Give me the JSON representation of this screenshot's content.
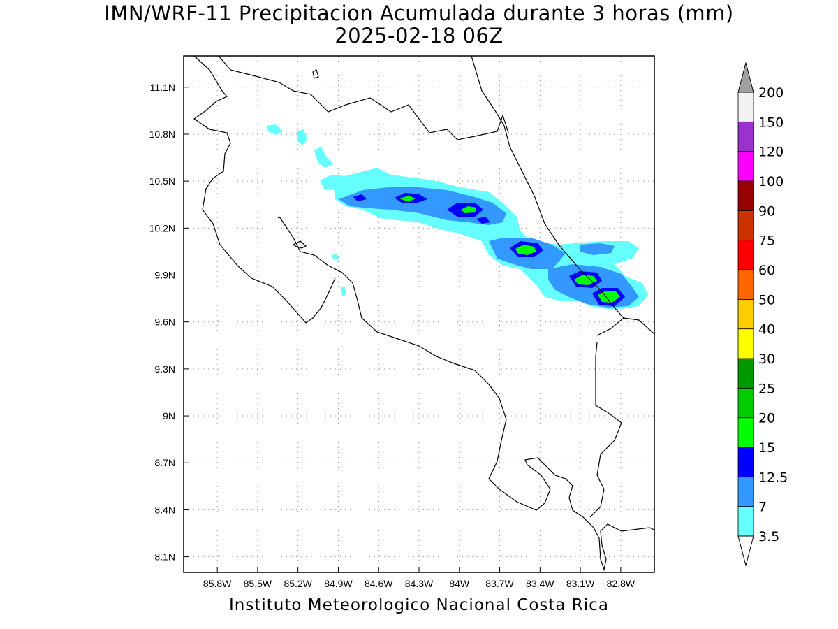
{
  "title": {
    "line1": "IMN/WRF-11 Precipitacion Acumulada durante 3 horas (mm)",
    "line2": "2025-02-18 06Z"
  },
  "footer": "Instituto Meteorologico Nacional Costa Rica",
  "chart_data": {
    "type": "heatmap",
    "map_region": "Costa Rica",
    "variable": "Precipitacion Acumulada durante 3 horas",
    "units": "mm",
    "xlabel": "",
    "ylabel": "",
    "xlim": [
      -86.05,
      -82.55
    ],
    "ylim": [
      8.0,
      11.3
    ],
    "x_ticks": [
      "85.8W",
      "85.5W",
      "85.2W",
      "84.9W",
      "84.6W",
      "84.3W",
      "84W",
      "83.7W",
      "83.4W",
      "83.1W",
      "82.8W"
    ],
    "y_ticks": [
      "11.1N",
      "10.8N",
      "10.5N",
      "10.2N",
      "9.9N",
      "9.6N",
      "9.3N",
      "9N",
      "8.7N",
      "8.4N",
      "8.1N"
    ],
    "grid": true,
    "colorbar": {
      "levels": [
        "3.5",
        "7",
        "12.5",
        "15",
        "20",
        "25",
        "30",
        "40",
        "50",
        "60",
        "75",
        "90",
        "100",
        "120",
        "150",
        "200"
      ],
      "colors": [
        "#66ffff",
        "#3399ff",
        "#0000ff",
        "#00ff00",
        "#00cc00",
        "#009900",
        "#ffff00",
        "#ffcc00",
        "#ff6600",
        "#ff0000",
        "#cc3300",
        "#990000",
        "#ff00ff",
        "#9933cc",
        "#f2f2f2"
      ],
      "under_color": "#ffffff",
      "over_color": "#a0a0a0"
    },
    "precip_areas": [
      {
        "lon": -84.1,
        "lat": 10.4,
        "max_mm": 25
      },
      {
        "lon": -83.45,
        "lat": 10.05,
        "max_mm": 25
      },
      {
        "lon": -82.95,
        "lat": 9.85,
        "max_mm": 25
      },
      {
        "lon": -82.85,
        "lat": 9.78,
        "max_mm": 25
      }
    ]
  }
}
